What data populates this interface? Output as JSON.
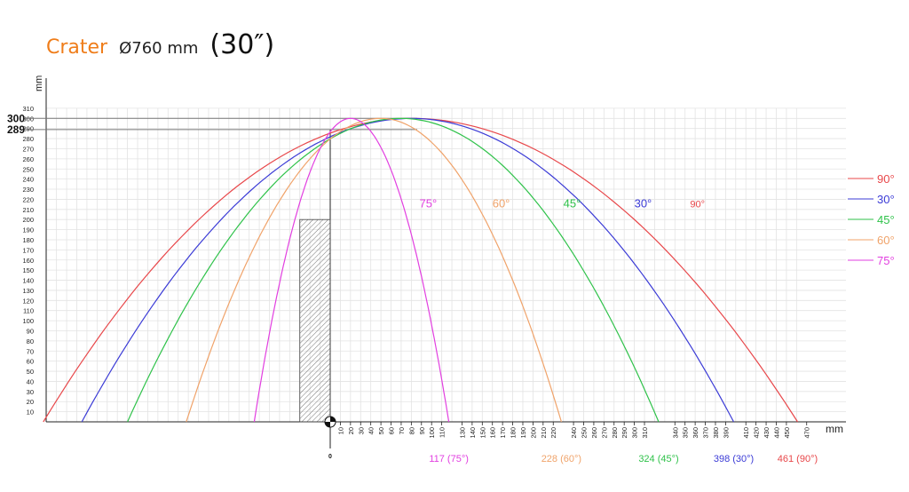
{
  "title": {
    "name": "Crater",
    "diameter": "Ø760 mm",
    "inches": "(30″)",
    "name_color": "#ef7d1a"
  },
  "chart_data": {
    "type": "line",
    "xlabel": "mm",
    "ylabel": "mm",
    "xlim": [
      -300,
      470
    ],
    "ylim": [
      0,
      310
    ],
    "x_tick_labels": [
      "10",
      "20",
      "30",
      "40",
      "50",
      "60",
      "70",
      "80",
      "90",
      "100",
      "110",
      "130",
      "140",
      "150",
      "160",
      "170",
      "180",
      "190",
      "200",
      "210",
      "220",
      "240",
      "250",
      "260",
      "270",
      "280",
      "290",
      "300",
      "310",
      "340",
      "350",
      "360",
      "370",
      "380",
      "390",
      "410",
      "420",
      "430",
      "440",
      "450",
      "470"
    ],
    "y_ticks": [
      10,
      20,
      30,
      40,
      50,
      60,
      70,
      80,
      90,
      100,
      110,
      120,
      130,
      140,
      150,
      160,
      170,
      180,
      190,
      200,
      210,
      220,
      230,
      240,
      250,
      260,
      270,
      280,
      290,
      300,
      310
    ],
    "origin_label": "0",
    "ref_lines": [
      {
        "y": 300,
        "label": "300"
      },
      {
        "y": 289,
        "label": "289"
      }
    ],
    "obstacle": {
      "x0": -30,
      "x1": 0,
      "y0": 0,
      "y1": 200
    },
    "series": [
      {
        "name": "90°",
        "color": "#e8474a",
        "x_start": -283,
        "x_peak": 80,
        "x_end": 461,
        "peak_y": 300,
        "curve_label": "90°",
        "curve_label_x": 355,
        "curve_label_y": 212,
        "range_label": "461 (90°)"
      },
      {
        "name": "30°",
        "color": "#3b3bd6",
        "x_start": -245,
        "x_peak": 80,
        "x_end": 398,
        "peak_y": 300,
        "curve_label": "30°",
        "curve_label_x": 300,
        "curve_label_y": 212,
        "range_label": "398 (30°)"
      },
      {
        "name": "45°",
        "color": "#2fc24a",
        "x_start": -200,
        "x_peak": 70,
        "x_end": 324,
        "peak_y": 300,
        "curve_label": "45°",
        "curve_label_x": 230,
        "curve_label_y": 212,
        "range_label": "324 (45°)"
      },
      {
        "name": "60°",
        "color": "#f0a36a",
        "x_start": -142,
        "x_peak": 50,
        "x_end": 228,
        "peak_y": 300,
        "curve_label": "60°",
        "curve_label_x": 160,
        "curve_label_y": 212,
        "range_label": "228 (60°)"
      },
      {
        "name": "75°",
        "color": "#e23fe0",
        "x_start": -75,
        "x_peak": 20,
        "x_end": 117,
        "peak_y": 300,
        "curve_label": "75°",
        "curve_label_x": 88,
        "curve_label_y": 212,
        "range_label": "117 (75°)"
      }
    ],
    "legend_placement": "right",
    "grid": true
  }
}
